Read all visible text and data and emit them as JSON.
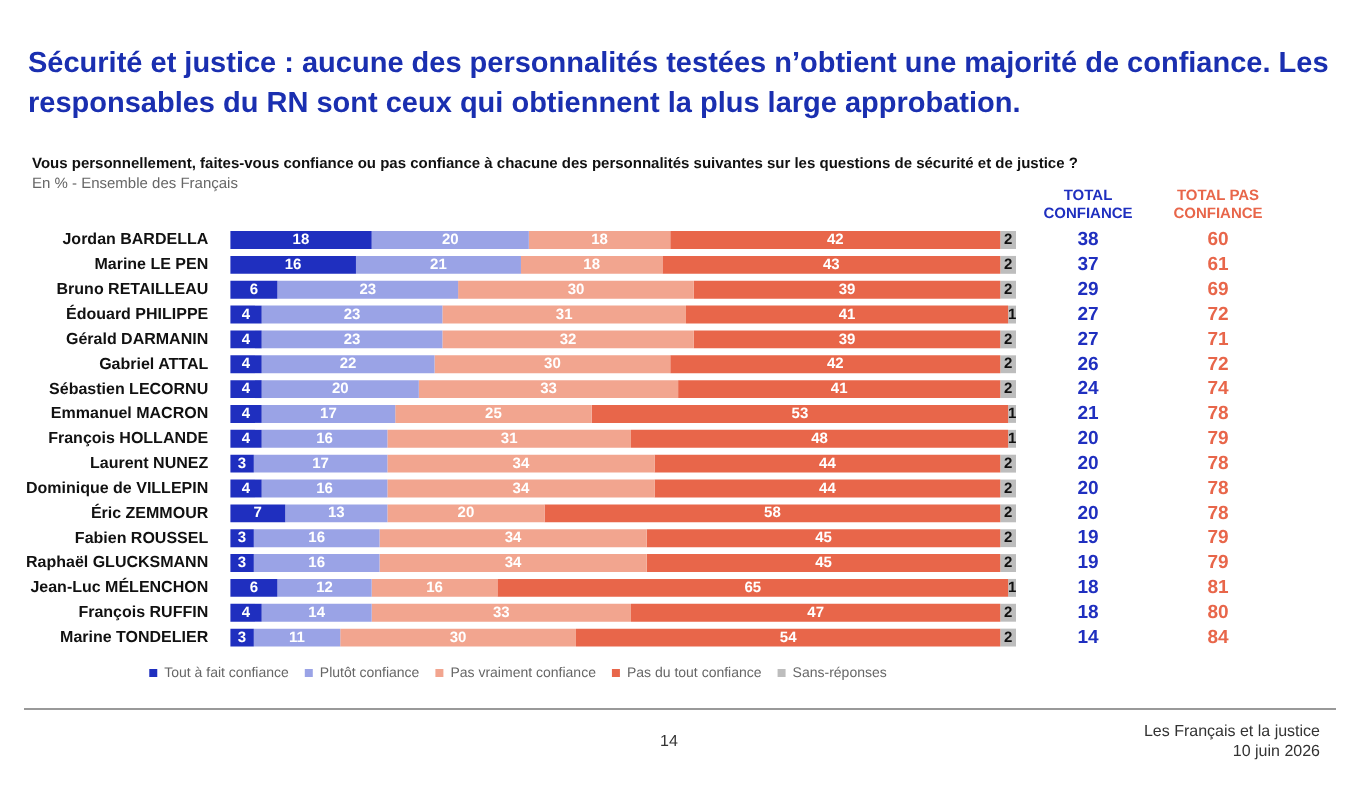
{
  "chart_data": {
    "type": "bar",
    "orientation": "horizontal",
    "stacked": true,
    "title": "Sécurité et justice : aucune des personnalités testées n’obtient une majorité de confiance. Les responsables du RN sont ceux qui obtiennent la plus large approbation.",
    "subtitle": "Vous personnellement, faites-vous confiance ou pas confiance à chacune des personnalités suivantes sur les questions de sécurité et de justice ?",
    "categories": [
      "Jordan BARDELLA",
      "Marine LE PEN",
      "Bruno RETAILLEAU",
      "Édouard PHILIPPE",
      "Gérald DARMANIN",
      "Gabriel ATTAL",
      "Sébastien LECORNU",
      "Emmanuel MACRON",
      "François HOLLANDE",
      "Laurent NUNEZ",
      "Dominique de VILLEPIN",
      "Éric ZEMMOUR",
      "Fabien ROUSSEL",
      "Raphaël GLUCKSMANN",
      "Jean-Luc MÉLENCHON",
      "François RUFFIN",
      "Marine TONDELIER"
    ],
    "series": [
      {
        "name": "Tout à fait confiance",
        "color": "#1f2fbf",
        "values": [
          18,
          16,
          6,
          4,
          4,
          4,
          4,
          4,
          4,
          3,
          4,
          7,
          3,
          3,
          6,
          4,
          3
        ]
      },
      {
        "name": "Plutôt confiance",
        "color": "#9aa3e6",
        "values": [
          20,
          21,
          23,
          23,
          23,
          22,
          20,
          17,
          16,
          17,
          16,
          13,
          16,
          16,
          12,
          14,
          11
        ]
      },
      {
        "name": "Pas vraiment confiance",
        "color": "#f2a58f",
        "values": [
          18,
          18,
          30,
          31,
          32,
          30,
          33,
          25,
          31,
          34,
          34,
          20,
          34,
          34,
          16,
          33,
          30
        ]
      },
      {
        "name": "Pas du tout confiance",
        "color": "#e8664a",
        "values": [
          42,
          43,
          39,
          41,
          39,
          42,
          41,
          53,
          48,
          44,
          44,
          58,
          45,
          45,
          65,
          47,
          54
        ]
      },
      {
        "name": "Sans-réponses",
        "color": "#bdbdbd",
        "values": [
          2,
          2,
          2,
          1,
          2,
          2,
          2,
          1,
          1,
          2,
          2,
          2,
          2,
          2,
          1,
          2,
          2
        ]
      }
    ],
    "xlim": [
      0,
      100
    ],
    "tick_labels": "y",
    "grid": false,
    "legend": "bottom",
    "data_labels": true,
    "annotations": [
      "En % - Ensemble des Français",
      "TOTAL CONFIANCE",
      "TOTAL PAS CONFIANCE",
      "38",
      "60",
      "37",
      "61",
      "29",
      "69",
      "27",
      "72",
      "27",
      "71",
      "26",
      "72",
      "24",
      "74",
      "21",
      "78",
      "20",
      "79",
      "20",
      "78",
      "20",
      "78",
      "20",
      "78",
      "19",
      "79",
      "19",
      "79",
      "18",
      "81",
      "18",
      "80",
      "14",
      "84",
      "14",
      "Les Français et la justice",
      "10 juin 2026"
    ]
  }
}
